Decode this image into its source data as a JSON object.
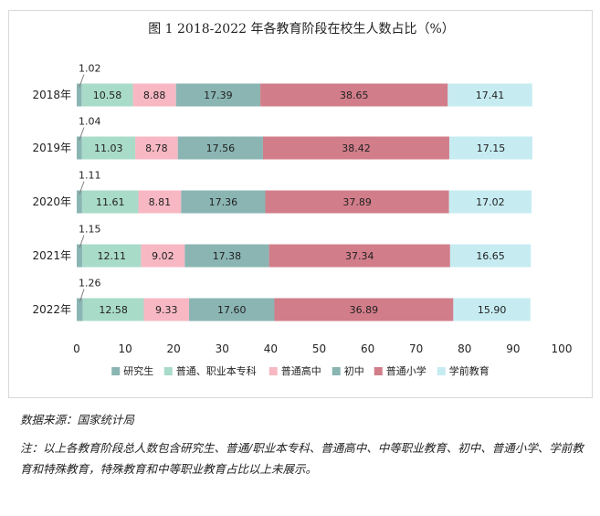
{
  "chart_data": {
    "type": "bar",
    "orientation": "horizontal",
    "stacked": true,
    "title": "图 1 2018-2022 年各教育阶段在校生人数占比（%）",
    "categories": [
      "2018年",
      "2019年",
      "2020年",
      "2021年",
      "2022年"
    ],
    "series": [
      {
        "name": "研究生",
        "values": [
          1.02,
          1.04,
          1.11,
          1.15,
          1.26
        ]
      },
      {
        "name": "普通、职业本专科",
        "values": [
          10.58,
          11.03,
          11.61,
          12.11,
          12.58
        ]
      },
      {
        "name": "普通高中",
        "values": [
          8.88,
          8.78,
          8.81,
          9.02,
          9.33
        ]
      },
      {
        "name": "初中",
        "values": [
          17.39,
          17.56,
          17.36,
          17.38,
          17.6
        ]
      },
      {
        "name": "普通小学",
        "values": [
          38.65,
          38.42,
          37.89,
          37.34,
          36.89
        ]
      },
      {
        "name": "学前教育",
        "values": [
          17.41,
          17.15,
          17.02,
          16.65,
          15.9
        ]
      }
    ],
    "value_labels": [
      [
        "1.02",
        "10.58",
        "8.88",
        "17.39",
        "38.65",
        "17.41"
      ],
      [
        "1.04",
        "11.03",
        "8.78",
        "17.56",
        "38.42",
        "17.15"
      ],
      [
        "1.11",
        "11.61",
        "8.81",
        "17.36",
        "37.89",
        "17.02"
      ],
      [
        "1.15",
        "12.11",
        "9.02",
        "17.38",
        "37.34",
        "16.65"
      ],
      [
        "1.26",
        "12.58",
        "9.33",
        "17.60",
        "36.89",
        "15.90"
      ]
    ],
    "xlim": [
      0,
      100
    ],
    "xticks": [
      "0",
      "10",
      "20",
      "30",
      "40",
      "50",
      "60",
      "70",
      "80",
      "90",
      "100"
    ],
    "grid": false,
    "legend_position": "bottom",
    "colors": [
      "#8ab5b3",
      "#a9dbc9",
      "#f7b8c3",
      "#8ab5b3",
      "#d27d8a",
      "#c6ecf2"
    ]
  },
  "notes": {
    "source": "数据来源：国家统计局",
    "footnote": "注：以上各教育阶段总人数包含研究生、普通/职业本专科、普通高中、中等职业教育、初中、普通小学、学前教育和特殊教育，特殊教育和中等职业教育占比以上未展示。"
  }
}
